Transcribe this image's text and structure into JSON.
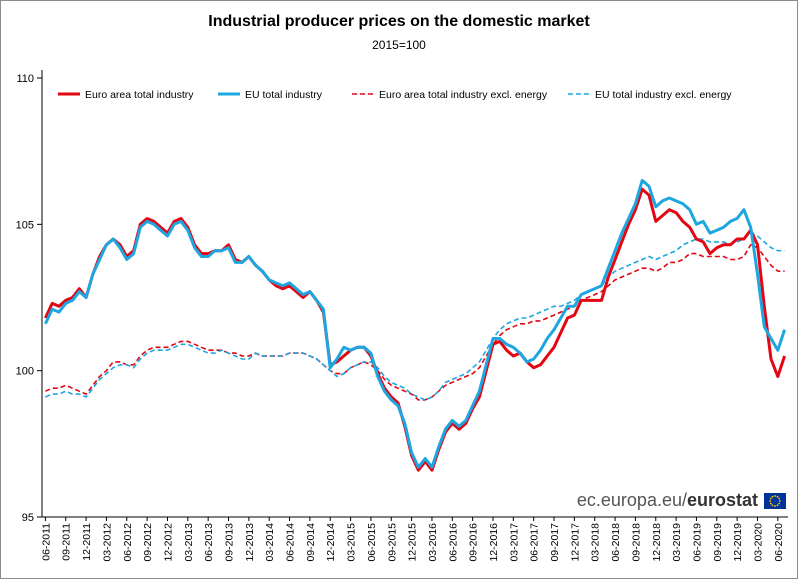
{
  "chart_data": {
    "type": "line",
    "title": "Industrial producer prices on the domestic market",
    "subtitle": "2015=100",
    "xlabel": "",
    "ylabel": "",
    "ylim": [
      95,
      110
    ],
    "y_ticks": [
      95,
      100,
      105,
      110
    ],
    "legend_position": "top",
    "x_tick_labels": [
      "06-2011",
      "09-2011",
      "12-2011",
      "03-2012",
      "06-2012",
      "09-2012",
      "12-2012",
      "03-2013",
      "06-2013",
      "09-2013",
      "12-2013",
      "03-2014",
      "06-2014",
      "09-2014",
      "12-2014",
      "03-2015",
      "06-2015",
      "09-2015",
      "12-2015",
      "03-2016",
      "06-2016",
      "09-2016",
      "12-2016",
      "03-2017",
      "06-2017",
      "09-2017",
      "12-2017",
      "03-2018",
      "06-2018",
      "09-2018",
      "12-2018",
      "03-2019",
      "06-2019",
      "09-2019",
      "12-2019",
      "03-2020",
      "06-2020"
    ],
    "series": [
      {
        "name": "Euro area total industry",
        "color": "#e30613",
        "style": "solid",
        "values": [
          101.8,
          102.3,
          102.2,
          102.4,
          102.5,
          102.8,
          102.5,
          103.3,
          103.9,
          104.3,
          104.5,
          104.3,
          103.9,
          104.1,
          105.0,
          105.2,
          105.1,
          104.9,
          104.7,
          105.1,
          105.2,
          104.9,
          104.3,
          104.0,
          104.0,
          104.1,
          104.1,
          104.3,
          103.8,
          103.7,
          103.9,
          103.6,
          103.4,
          103.1,
          102.9,
          102.8,
          102.9,
          102.7,
          102.5,
          102.7,
          102.4,
          102.0,
          100.2,
          100.3,
          100.5,
          100.7,
          100.8,
          100.8,
          100.5,
          99.9,
          99.4,
          99.1,
          98.9,
          98.1,
          97.1,
          96.6,
          96.9,
          96.6,
          97.3,
          97.9,
          98.2,
          98.0,
          98.2,
          98.7,
          99.1,
          100.0,
          100.9,
          101.0,
          100.7,
          100.5,
          100.6,
          100.3,
          100.1,
          100.2,
          100.5,
          100.8,
          101.3,
          101.8,
          101.9,
          102.4,
          102.4,
          102.4,
          102.4,
          103.2,
          103.8,
          104.4,
          105.0,
          105.5,
          106.2,
          106.0,
          105.1,
          105.3,
          105.5,
          105.4,
          105.1,
          104.9,
          104.5,
          104.4,
          104.0,
          104.2,
          104.3,
          104.3,
          104.5,
          104.5,
          104.8,
          104.3,
          102.2,
          100.4,
          99.8,
          100.5
        ]
      },
      {
        "name": "EU total industry",
        "color": "#1ea6e0",
        "style": "solid",
        "values": [
          101.6,
          102.1,
          102.0,
          102.3,
          102.4,
          102.7,
          102.5,
          103.3,
          103.8,
          104.3,
          104.5,
          104.2,
          103.8,
          104.0,
          104.9,
          105.1,
          105.0,
          104.8,
          104.6,
          105.0,
          105.1,
          104.8,
          104.2,
          103.9,
          103.9,
          104.1,
          104.1,
          104.2,
          103.7,
          103.7,
          103.9,
          103.6,
          103.4,
          103.1,
          103.0,
          102.9,
          103.0,
          102.8,
          102.6,
          102.7,
          102.4,
          102.1,
          100.1,
          100.4,
          100.8,
          100.7,
          100.8,
          100.8,
          100.6,
          99.8,
          99.3,
          99.0,
          98.8,
          98.2,
          97.2,
          96.7,
          97.0,
          96.7,
          97.4,
          98.0,
          98.3,
          98.1,
          98.3,
          98.8,
          99.3,
          100.2,
          101.1,
          101.1,
          100.9,
          100.8,
          100.6,
          100.3,
          100.4,
          100.7,
          101.1,
          101.4,
          101.8,
          102.2,
          102.2,
          102.6,
          102.7,
          102.8,
          102.9,
          103.5,
          104.1,
          104.7,
          105.2,
          105.7,
          106.5,
          106.3,
          105.6,
          105.8,
          105.9,
          105.8,
          105.7,
          105.5,
          105.0,
          105.1,
          104.7,
          104.8,
          104.9,
          105.1,
          105.2,
          105.5,
          104.9,
          103.3,
          101.5,
          101.1,
          100.7,
          101.4
        ]
      },
      {
        "name": "Euro area total industry excl. energy",
        "color": "#e30613",
        "style": "dashed",
        "values": [
          99.3,
          99.4,
          99.4,
          99.5,
          99.4,
          99.3,
          99.2,
          99.5,
          99.8,
          100.0,
          100.3,
          100.3,
          100.2,
          100.2,
          100.5,
          100.7,
          100.8,
          100.8,
          100.8,
          100.9,
          101.0,
          101.0,
          100.9,
          100.8,
          100.7,
          100.7,
          100.7,
          100.6,
          100.6,
          100.5,
          100.5,
          100.6,
          100.5,
          100.5,
          100.5,
          100.5,
          100.6,
          100.6,
          100.6,
          100.5,
          100.4,
          100.2,
          100.0,
          99.9,
          99.9,
          100.1,
          100.2,
          100.3,
          100.2,
          100.0,
          99.7,
          99.5,
          99.4,
          99.3,
          99.2,
          99.0,
          99.0,
          99.1,
          99.3,
          99.5,
          99.6,
          99.7,
          99.8,
          99.9,
          100.1,
          100.5,
          100.9,
          101.2,
          101.4,
          101.5,
          101.6,
          101.6,
          101.7,
          101.7,
          101.8,
          101.9,
          102.0,
          102.1,
          102.2,
          102.4,
          102.5,
          102.6,
          102.7,
          102.9,
          103.1,
          103.2,
          103.3,
          103.4,
          103.5,
          103.5,
          103.4,
          103.5,
          103.7,
          103.7,
          103.8,
          104.0,
          104.0,
          103.9,
          103.9,
          103.9,
          103.9,
          103.8,
          103.8,
          103.9,
          104.3,
          104.2,
          103.9,
          103.6,
          103.4,
          103.4
        ]
      },
      {
        "name": "EU total industry excl. energy",
        "color": "#1ea6e0",
        "style": "dashed",
        "values": [
          99.1,
          99.2,
          99.2,
          99.3,
          99.2,
          99.2,
          99.1,
          99.4,
          99.7,
          99.9,
          100.1,
          100.2,
          100.2,
          100.1,
          100.4,
          100.6,
          100.7,
          100.7,
          100.7,
          100.8,
          100.9,
          100.9,
          100.8,
          100.7,
          100.6,
          100.6,
          100.7,
          100.6,
          100.5,
          100.4,
          100.4,
          100.6,
          100.5,
          100.5,
          100.5,
          100.5,
          100.6,
          100.6,
          100.6,
          100.5,
          100.4,
          100.2,
          100.0,
          99.8,
          99.9,
          100.1,
          100.2,
          100.3,
          100.3,
          100.1,
          99.8,
          99.6,
          99.5,
          99.4,
          99.2,
          99.1,
          99.0,
          99.1,
          99.3,
          99.6,
          99.7,
          99.8,
          99.9,
          100.1,
          100.3,
          100.7,
          101.1,
          101.4,
          101.6,
          101.7,
          101.8,
          101.8,
          101.9,
          102.0,
          102.1,
          102.2,
          102.2,
          102.3,
          102.4,
          102.6,
          102.7,
          102.8,
          102.9,
          103.2,
          103.4,
          103.5,
          103.6,
          103.7,
          103.8,
          103.9,
          103.8,
          103.9,
          104.0,
          104.1,
          104.3,
          104.4,
          104.5,
          104.5,
          104.4,
          104.4,
          104.4,
          104.3,
          104.4,
          104.5,
          104.7,
          104.6,
          104.4,
          104.2,
          104.1,
          104.1
        ]
      }
    ]
  },
  "source": {
    "prefix": "ec.europa.eu/",
    "brand": "eurostat"
  }
}
